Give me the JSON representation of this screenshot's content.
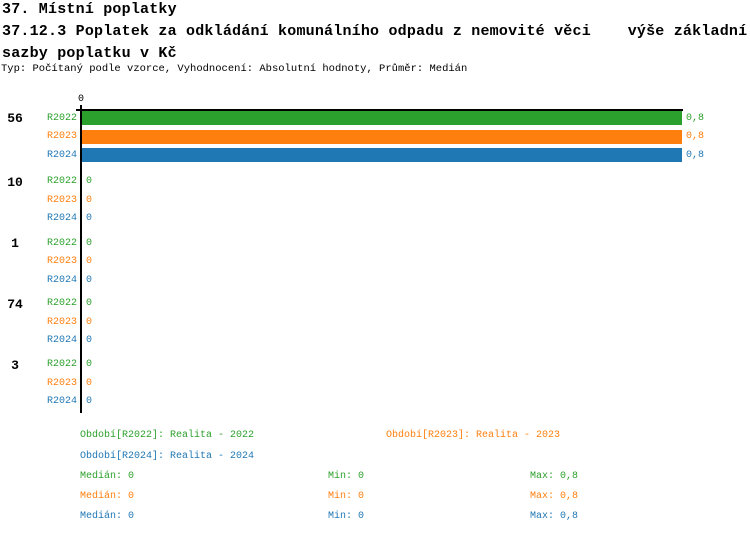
{
  "header": {
    "title_line1": "37. Místní poplatky",
    "title_line2": "37.12.3 Poplatek za odkládání komunálního odpadu z nemovité věci    výše základní",
    "title_line3": "sazby poplatku v Kč",
    "meta": "Typ: Počítaný podle vzorce, Vyhodnocení: Absolutní hodnoty, Průměr: Medián"
  },
  "chart_data": {
    "type": "bar",
    "orientation": "horizontal",
    "title": "37.12.3 Poplatek za odkládání komunálního odpadu z nemovité věci – výše základní sazby poplatku v Kč",
    "categories": [
      "56",
      "10",
      "1",
      "74",
      "3"
    ],
    "series": [
      {
        "name": "R2022",
        "color": "#2CA02C",
        "values": [
          0.8,
          0,
          0,
          0,
          0
        ],
        "value_labels": [
          "0,8",
          "0",
          "0",
          "0",
          "0"
        ]
      },
      {
        "name": "R2023",
        "color": "#FF7F0E",
        "values": [
          0.8,
          0,
          0,
          0,
          0
        ],
        "value_labels": [
          "0,8",
          "0",
          "0",
          "0",
          "0"
        ]
      },
      {
        "name": "R2024",
        "color": "#1F77B4",
        "values": [
          0.8,
          0,
          0,
          0,
          0
        ],
        "value_labels": [
          "0,8",
          "0",
          "0",
          "0",
          "0"
        ]
      }
    ],
    "xlim": [
      0,
      0.8
    ],
    "x_tick_labels": [
      "0"
    ],
    "grid": false,
    "legend_position": "bottom",
    "value_format": "czech-decimal-comma"
  },
  "legend": {
    "items": [
      {
        "text": "Období[R2022]: Realita - 2022",
        "color": "#2CA02C"
      },
      {
        "text": "Období[R2023]: Realita - 2023",
        "color": "#FF7F0E"
      },
      {
        "text": "Období[R2024]: Realita - 2024",
        "color": "#1F77B4"
      }
    ],
    "stats": [
      {
        "median": "Medián: 0",
        "min": "Min: 0",
        "max": "Max: 0,8",
        "color": "#2CA02C"
      },
      {
        "median": "Medián: 0",
        "min": "Min: 0",
        "max": "Max: 0,8",
        "color": "#FF7F0E"
      },
      {
        "median": "Medián: 0",
        "min": "Min: 0",
        "max": "Max: 0,8",
        "color": "#1F77B4"
      }
    ]
  },
  "colors": {
    "axis": "#000000",
    "background": "#FFFFFF",
    "series_green": "#2CA02C",
    "series_orange": "#FF7F0E",
    "series_blue": "#1F77B4"
  }
}
